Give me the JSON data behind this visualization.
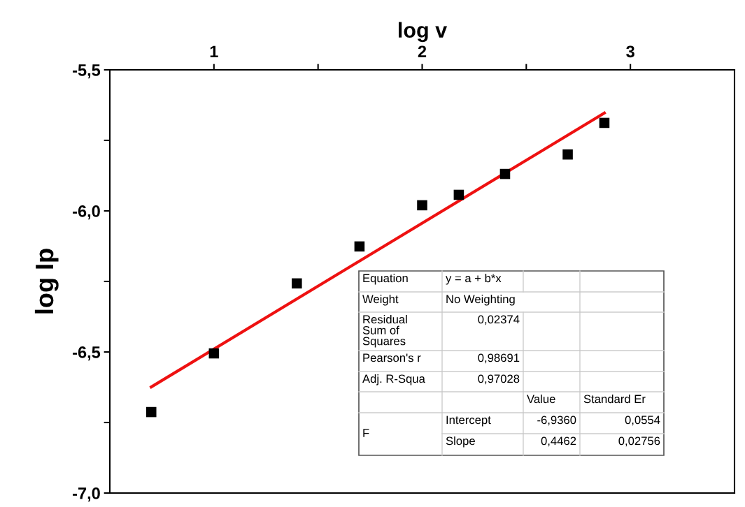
{
  "chart_data": {
    "type": "scatter",
    "xlabel": "log v",
    "ylabel": "log Ip",
    "xlim": [
      0.5,
      3.5
    ],
    "xticks": [
      1,
      {
        "value": 1.5,
        "label": null
      },
      2,
      {
        "value": 2.5,
        "label": null
      },
      3
    ],
    "ylim": [
      -7.0,
      -5.5
    ],
    "yticks": [
      {
        "value": -7.0,
        "label": "-7,0"
      },
      {
        "value": -6.75,
        "label": null
      },
      {
        "value": -6.5,
        "label": "-6,5"
      },
      {
        "value": -6.25,
        "label": null
      },
      {
        "value": -6.0,
        "label": "-6,0"
      },
      {
        "value": -5.75,
        "label": null
      },
      {
        "value": -5.5,
        "label": "-5,5"
      }
    ],
    "series": [
      {
        "marker": "square",
        "color": "#000000",
        "x": [
          0.699,
          1.0,
          1.398,
          1.699,
          2.0,
          2.176,
          2.398,
          2.699,
          2.875
        ],
        "values": [
          -6.713,
          -6.505,
          -6.257,
          -6.126,
          -5.98,
          -5.943,
          -5.869,
          -5.8,
          -5.688
        ]
      },
      {
        "type": "line",
        "color": "#ee1111",
        "x": [
          0.699,
          2.875
        ],
        "values": [
          -6.624,
          -5.653
        ]
      }
    ],
    "annotations": [
      "Equation",
      "y = a + b*x",
      "Weight",
      "No Weighting",
      "Residual\nSum of\nSquares",
      "0,02374",
      "Pearson's r",
      "0,98691",
      "Adj. R-Squa",
      "0,97028",
      "Value",
      "Standard Er",
      "F",
      "Intercept",
      "-6,9360",
      "0,0554",
      "Slope",
      "0,4462",
      "0,02756"
    ]
  }
}
